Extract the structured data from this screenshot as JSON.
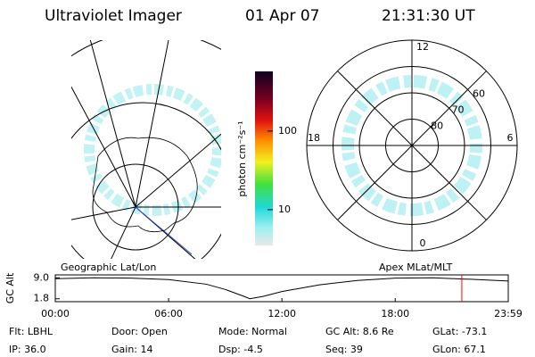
{
  "header": {
    "instrument": "Ultraviolet Imager",
    "date": "01 Apr 07",
    "time": "21:31:30 UT"
  },
  "colorbar": {
    "label": "photon cm⁻²s⁻¹",
    "scale": "log",
    "lim": [
      3.5,
      575
    ],
    "ticks": [
      10,
      100
    ]
  },
  "polar": {
    "lat_circles": [
      80,
      70,
      60,
      50
    ],
    "lat_labels": [
      80,
      70,
      60
    ],
    "mlt_labels": [
      12,
      6,
      0,
      18
    ]
  },
  "altitude_plot": {
    "label_left": "Geographic Lat/Lon",
    "label_right": "Apex MLat/MLT",
    "y_label": "GC Alt",
    "ylim": [
      0.8,
      10
    ],
    "yticks": [
      {
        "value": 9,
        "label": "9.0"
      },
      {
        "value": 1.8,
        "label": "1.8"
      }
    ],
    "xlim": [
      0,
      23.983
    ],
    "xticks": [
      {
        "value": 0,
        "label": "00:00"
      },
      {
        "value": 6,
        "label": "06:00"
      },
      {
        "value": 12,
        "label": "12:00"
      },
      {
        "value": 18,
        "label": "18:00"
      },
      {
        "value": 23.983,
        "label": "23:59"
      }
    ],
    "x": [
      0,
      2,
      4,
      6,
      8,
      9,
      10,
      10.3,
      11,
      12,
      14,
      16,
      18,
      20,
      21.5,
      22,
      23.983
    ],
    "values": [
      8.7,
      9.0,
      8.9,
      8.4,
      6.8,
      5.0,
      2.6,
      1.8,
      2.6,
      4.3,
      6.6,
      8.1,
      8.9,
      9.0,
      8.6,
      8.5,
      7.9
    ],
    "current_hour": 21.525,
    "current_color": "#ff0000"
  },
  "status": {
    "rows": [
      [
        "Flt: LBHL",
        "Door: Open",
        "Mode: Normal",
        "GC Alt: 8.6 Re",
        "GLat: -73.1"
      ],
      [
        "IP: 36.0",
        "Gain: 14",
        "Dsp: -4.5",
        "Seq: 39",
        "GLon: 67.1"
      ]
    ]
  }
}
